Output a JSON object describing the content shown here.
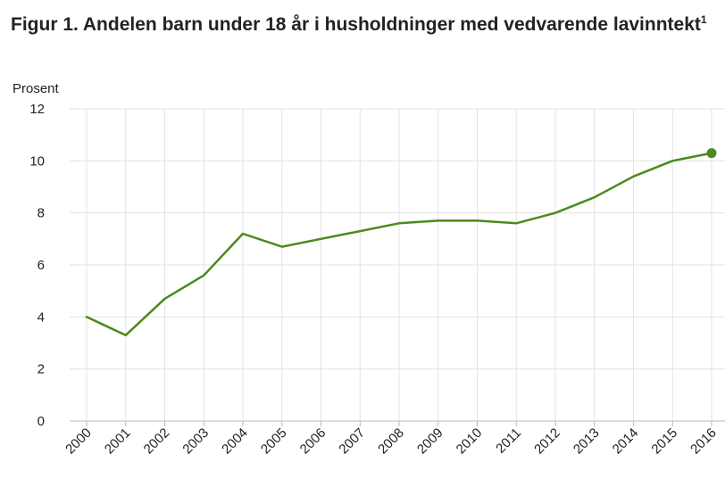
{
  "chart": {
    "title": "Figur 1. Andelen barn under 18 år i husholdninger med vedvarende lavinntekt",
    "title_footnote": "1"
  },
  "chart_data": {
    "type": "line",
    "title": "Figur 1. Andelen barn under 18 år i husholdninger med vedvarende lavinntekt",
    "ylabel": "Prosent",
    "xlabel": "",
    "ylim": [
      0,
      12
    ],
    "yticks": [
      0,
      2,
      4,
      6,
      8,
      10,
      12
    ],
    "grid": true,
    "categories": [
      "2000",
      "2001",
      "2002",
      "2003",
      "2004",
      "2005",
      "2006",
      "2007",
      "2008",
      "2009",
      "2010",
      "2011",
      "2012",
      "2013",
      "2014",
      "2015",
      "2016"
    ],
    "series": [
      {
        "values": [
          4.0,
          3.3,
          4.7,
          5.6,
          7.2,
          6.7,
          7.0,
          7.3,
          7.6,
          7.7,
          7.7,
          7.6,
          8.0,
          8.6,
          9.4,
          10.0,
          10.3
        ],
        "color": "#4c8a1c"
      }
    ]
  }
}
